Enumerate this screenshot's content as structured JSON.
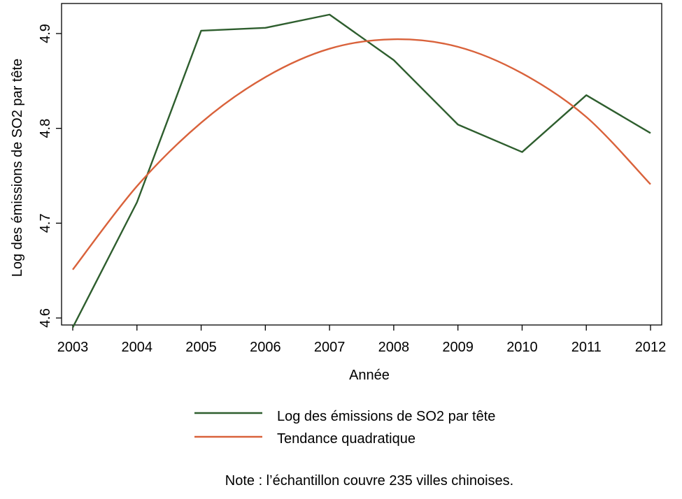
{
  "chart_data": {
    "type": "line",
    "xlabel": "Année",
    "ylabel": "Log des émissions de SO2 par tête",
    "x": [
      2003,
      2004,
      2005,
      2006,
      2007,
      2008,
      2009,
      2010,
      2011,
      2012
    ],
    "xlim": [
      2003,
      2012
    ],
    "ylim": [
      4.58,
      4.925
    ],
    "yticks": [
      4.6,
      4.7,
      4.8,
      4.9
    ],
    "yticklabels": [
      "4.6",
      "4.7",
      "4.8",
      "4.9"
    ],
    "series": [
      {
        "name": "Log des émissions de SO2 par tête",
        "color": "#2e5e2e",
        "values": [
          4.59,
          4.722,
          4.903,
          4.906,
          4.92,
          4.872,
          4.804,
          4.775,
          4.835,
          4.795
        ]
      },
      {
        "name": "Tendance quadratique",
        "color": "#d9623b",
        "style": "smooth",
        "values": [
          4.651,
          4.739,
          4.806,
          4.854,
          4.884,
          4.894,
          4.886,
          4.858,
          4.812,
          4.741
        ]
      }
    ],
    "legend": "bottom",
    "note": "Note : l’échantillon couvre 235 villes chinoises.",
    "grid": false
  }
}
